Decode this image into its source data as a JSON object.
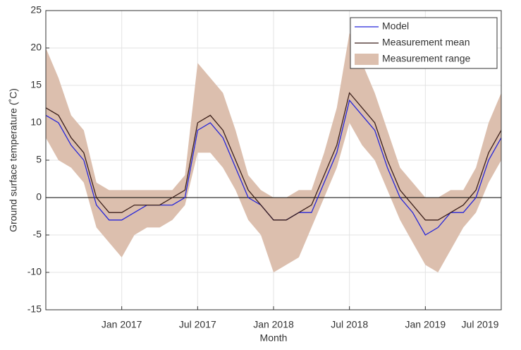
{
  "chart_data": {
    "type": "line",
    "x_label": "Month",
    "y_label": "Ground surface temperature (˚C)",
    "x": [
      "2016-07",
      "2016-08",
      "2016-09",
      "2016-10",
      "2016-11",
      "2016-12",
      "2017-01",
      "2017-02",
      "2017-03",
      "2017-04",
      "2017-05",
      "2017-06",
      "2017-07",
      "2017-08",
      "2017-09",
      "2017-10",
      "2017-11",
      "2017-12",
      "2018-01",
      "2018-02",
      "2018-03",
      "2018-04",
      "2018-05",
      "2018-06",
      "2018-07",
      "2018-08",
      "2018-09",
      "2018-10",
      "2018-11",
      "2018-12",
      "2019-01",
      "2019-02",
      "2019-03",
      "2019-04",
      "2019-05",
      "2019-06",
      "2019-07"
    ],
    "series": [
      {
        "name": "Model",
        "color": "#2626d9",
        "values": [
          11,
          10,
          7,
          5,
          -1,
          -3,
          -3,
          -2,
          -1,
          -1,
          -1,
          0,
          9,
          10,
          8,
          4,
          0,
          -1,
          -3,
          -3,
          -2,
          -2,
          2,
          6,
          13,
          11,
          9,
          4,
          0,
          -2,
          -5,
          -4,
          -2,
          -2,
          0,
          5,
          8
        ]
      },
      {
        "name": "Measurement mean",
        "color": "#3b1f1a",
        "values": [
          12,
          11,
          8,
          6,
          0,
          -2,
          -2,
          -1,
          -1,
          -1,
          0,
          1,
          10,
          11,
          9,
          5,
          1,
          -1,
          -3,
          -3,
          -2,
          -1,
          3,
          7,
          14,
          12,
          10,
          5,
          1,
          -1,
          -3,
          -3,
          -2,
          -1,
          1,
          6,
          9
        ]
      }
    ],
    "range": {
      "name": "Measurement range",
      "color": "#dcbfae",
      "low": [
        8,
        5,
        4,
        2,
        -4,
        -6,
        -8,
        -5,
        -4,
        -4,
        -3,
        -1,
        6,
        6,
        4,
        1,
        -3,
        -5,
        -10,
        -9,
        -8,
        -4,
        0,
        4,
        10,
        7,
        5,
        1,
        -3,
        -6,
        -9,
        -10,
        -7,
        -4,
        -2,
        2,
        5
      ],
      "high": [
        20,
        16,
        11,
        9,
        2,
        1,
        1,
        1,
        1,
        1,
        1,
        3,
        18,
        16,
        14,
        9,
        3,
        1,
        0,
        0,
        1,
        1,
        6,
        12,
        22,
        18,
        14,
        9,
        4,
        2,
        0,
        0,
        1,
        1,
        4,
        10,
        14
      ]
    },
    "xlim": [
      "2016-07",
      "2019-07"
    ],
    "xticks": [
      {
        "value": "2017-01",
        "label": "Jan 2017"
      },
      {
        "value": "2017-07",
        "label": "Jul 2017"
      },
      {
        "value": "2018-01",
        "label": "Jan 2018"
      },
      {
        "value": "2018-07",
        "label": "Jul 2018"
      },
      {
        "value": "2019-01",
        "label": "Jan 2019"
      },
      {
        "value": "2019-07",
        "label": "Jul 2019"
      }
    ],
    "ylim": [
      -15,
      25
    ],
    "yticks": [
      -15,
      -10,
      -5,
      0,
      5,
      10,
      15,
      20,
      25
    ],
    "grid": true,
    "legend": "top-right"
  }
}
